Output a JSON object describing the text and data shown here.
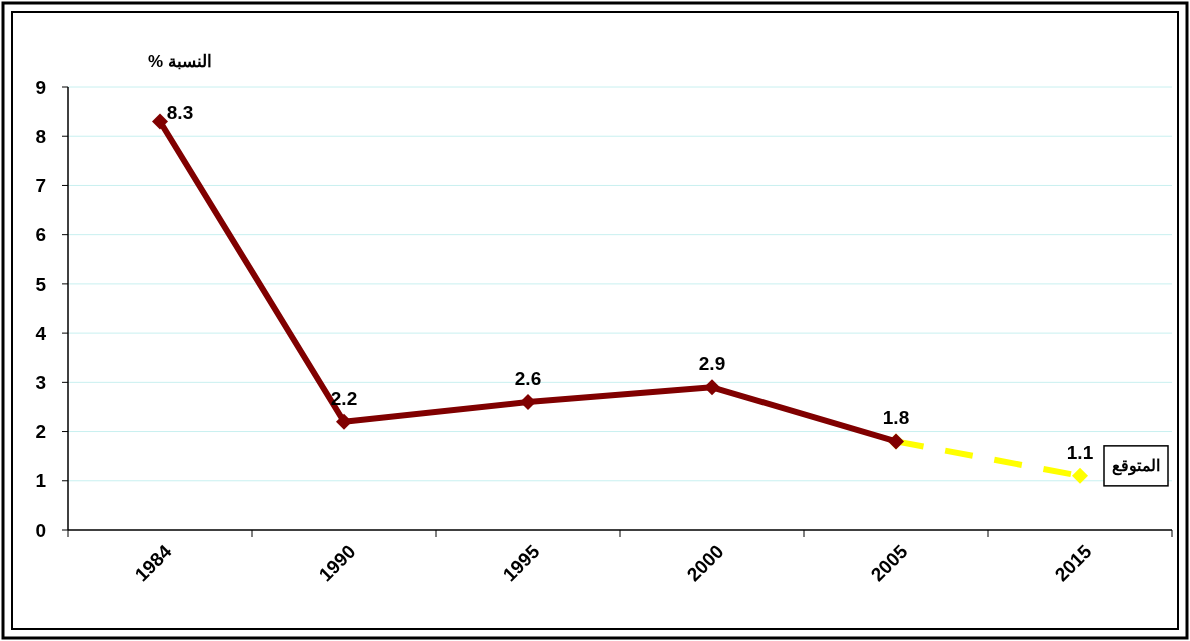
{
  "chart_data": {
    "type": "line",
    "ylabel": "النسبة %",
    "categories": [
      "1984",
      "1990",
      "1995",
      "2000",
      "2005",
      "2015"
    ],
    "series": [
      {
        "color": "#800000",
        "values": [
          8.3,
          2.2,
          2.6,
          2.9,
          1.8,
          null
        ],
        "value_labels": [
          "8.3",
          "2.2",
          "2.6",
          "2.9",
          "1.8",
          null
        ],
        "line_style": "solid"
      },
      {
        "color": "#ffff00",
        "values": [
          null,
          null,
          null,
          null,
          1.8,
          1.1
        ],
        "value_labels": [
          null,
          null,
          null,
          null,
          null,
          "1.1"
        ],
        "line_style": "dashed"
      }
    ],
    "annotations": [
      {
        "text": "المتوقع",
        "x": "2015",
        "y": 1.1
      }
    ],
    "ylim": [
      0,
      9
    ],
    "yticks": [
      0,
      1,
      2,
      3,
      4,
      5,
      6,
      7,
      8,
      9
    ],
    "grid": "y",
    "marker": "diamond"
  }
}
